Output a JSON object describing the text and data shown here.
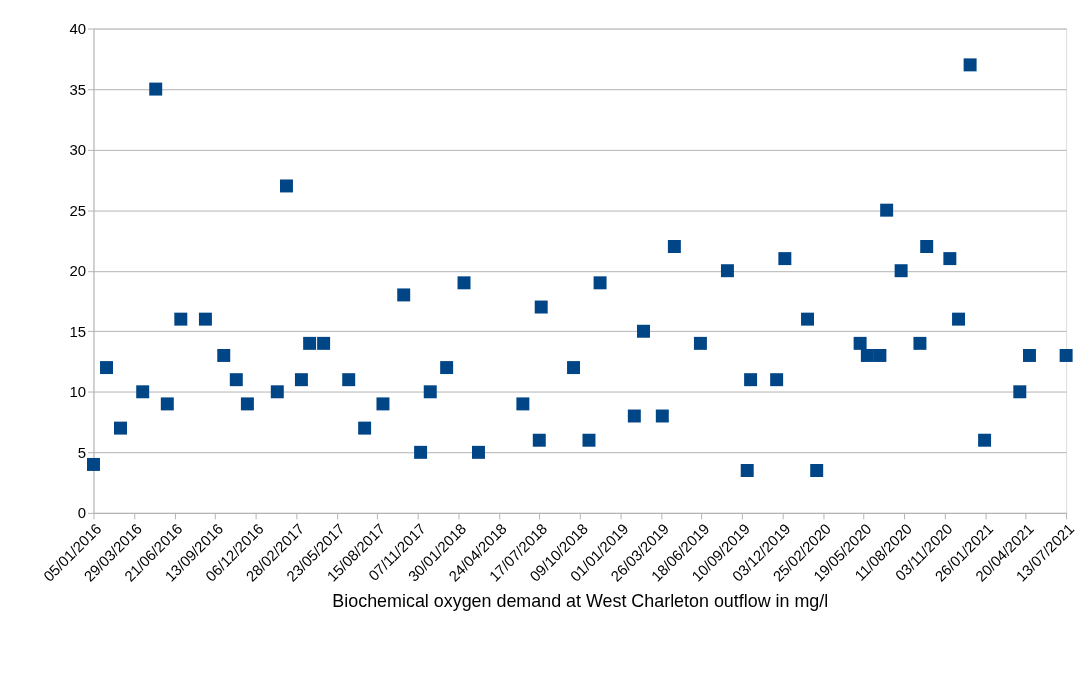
{
  "chart_data": {
    "type": "scatter",
    "xlabel": "Biochemical oxygen demand at West Charleton outflow in mg/l",
    "x": [
      "2016-01-05",
      "2016-02-01",
      "2016-03-01",
      "2016-04-16",
      "2016-05-13",
      "2016-06-06",
      "2016-07-04",
      "2016-08-24",
      "2016-10-01",
      "2016-10-27",
      "2016-11-19",
      "2017-01-20",
      "2017-02-08",
      "2017-03-11",
      "2017-03-28",
      "2017-04-26",
      "2017-06-17",
      "2017-07-20",
      "2017-08-27",
      "2017-10-09",
      "2017-11-13",
      "2017-12-03",
      "2018-01-06",
      "2018-02-11",
      "2018-03-13",
      "2018-06-13",
      "2018-07-17",
      "2018-07-21",
      "2018-09-26",
      "2018-10-28",
      "2018-11-20",
      "2019-01-30",
      "2019-02-18",
      "2019-03-29",
      "2019-04-23",
      "2019-06-16",
      "2019-08-11",
      "2019-09-21",
      "2019-09-28",
      "2019-11-21",
      "2019-12-08",
      "2020-01-24",
      "2020-02-12",
      "2020-05-12",
      "2020-05-27",
      "2020-06-22",
      "2020-07-06",
      "2020-08-05",
      "2020-09-13",
      "2020-09-27",
      "2020-11-14",
      "2020-12-02",
      "2020-12-26",
      "2021-01-25",
      "2021-04-08",
      "2021-04-28",
      "2021-07-13"
    ],
    "series": [
      {
        "color": "#004586",
        "values": [
          4,
          12,
          7,
          10,
          35,
          9,
          16,
          16,
          13,
          11,
          9,
          10,
          27,
          11,
          14,
          14,
          11,
          7,
          9,
          18,
          5,
          10,
          12,
          19,
          5,
          9,
          6,
          17,
          12,
          6,
          19,
          8,
          15,
          8,
          22,
          14,
          20,
          3.5,
          11,
          11,
          21,
          16,
          3.5,
          14,
          13,
          13,
          25,
          20,
          14,
          22,
          21,
          16,
          37,
          6,
          10,
          13,
          13
        ]
      }
    ],
    "marker": "square",
    "grid": "y",
    "ylim": [
      0,
      40
    ],
    "yticks": [
      0,
      5,
      10,
      15,
      20,
      25,
      30,
      35,
      40
    ],
    "xlim": [
      "2016-01-05",
      "2021-07-13"
    ],
    "xticks": [
      {
        "value": "2016-01-05",
        "label": "05/01/2016"
      },
      {
        "value": "2016-03-29",
        "label": "29/03/2016"
      },
      {
        "value": "2016-06-21",
        "label": "21/06/2016"
      },
      {
        "value": "2016-09-13",
        "label": "13/09/2016"
      },
      {
        "value": "2016-12-06",
        "label": "06/12/2016"
      },
      {
        "value": "2017-02-28",
        "label": "28/02/2017"
      },
      {
        "value": "2017-05-23",
        "label": "23/05/2017"
      },
      {
        "value": "2017-08-15",
        "label": "15/08/2017"
      },
      {
        "value": "2017-11-07",
        "label": "07/11/2017"
      },
      {
        "value": "2018-01-30",
        "label": "30/01/2018"
      },
      {
        "value": "2018-04-24",
        "label": "24/04/2018"
      },
      {
        "value": "2018-07-17",
        "label": "17/07/2018"
      },
      {
        "value": "2018-10-09",
        "label": "09/10/2018"
      },
      {
        "value": "2019-01-01",
        "label": "01/01/2019"
      },
      {
        "value": "2019-03-26",
        "label": "26/03/2019"
      },
      {
        "value": "2019-06-18",
        "label": "18/06/2019"
      },
      {
        "value": "2019-09-10",
        "label": "10/09/2019"
      },
      {
        "value": "2019-12-03",
        "label": "03/12/2019"
      },
      {
        "value": "2020-02-25",
        "label": "25/02/2020"
      },
      {
        "value": "2020-05-19",
        "label": "19/05/2020"
      },
      {
        "value": "2020-08-11",
        "label": "11/08/2020"
      },
      {
        "value": "2020-11-03",
        "label": "03/11/2020"
      },
      {
        "value": "2021-01-26",
        "label": "26/01/2021"
      },
      {
        "value": "2021-04-20",
        "label": "20/04/2021"
      },
      {
        "value": "2021-07-13",
        "label": "13/07/2021"
      }
    ]
  }
}
